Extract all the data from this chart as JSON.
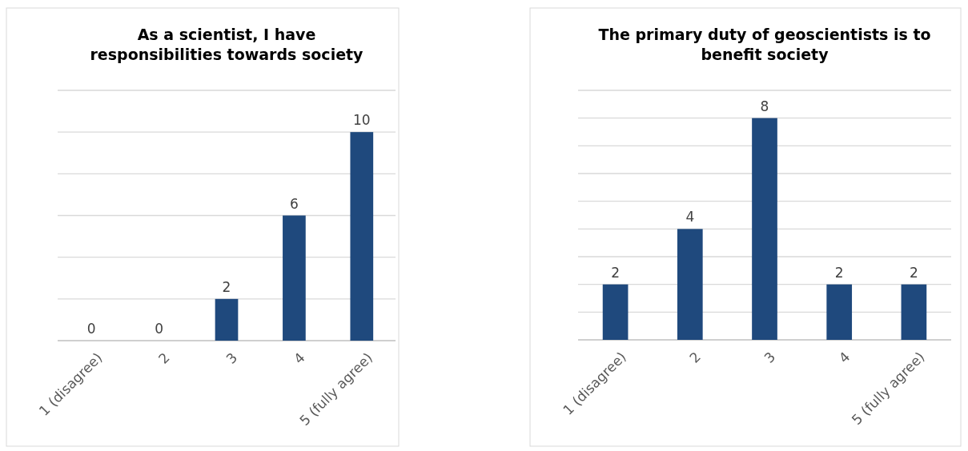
{
  "chart_data": [
    {
      "type": "bar",
      "title": "As a scientist, I have responsibilities towards society",
      "categories": [
        "1 (disagree)",
        "2",
        "3",
        "4",
        "5 (fully agree)"
      ],
      "values": [
        0,
        0,
        2,
        6,
        10
      ],
      "color": "#1f497d",
      "ylim": [
        0,
        12
      ],
      "yticks": [
        0,
        2,
        4,
        6,
        8,
        10,
        12
      ],
      "grid": "y",
      "tick_labels": "x",
      "data_labels": true
    },
    {
      "type": "bar",
      "title": "The primary duty of geoscientists is to benefit society",
      "categories": [
        "1 (disagree)",
        "2",
        "3",
        "4",
        "5 (fully agree)"
      ],
      "values": [
        2,
        4,
        8,
        2,
        2
      ],
      "color": "#1f497d",
      "ylim": [
        0,
        9
      ],
      "yticks": [
        0,
        1,
        2,
        3,
        4,
        5,
        6,
        7,
        8,
        9
      ],
      "grid": "y",
      "tick_labels": "x",
      "data_labels": true
    }
  ]
}
